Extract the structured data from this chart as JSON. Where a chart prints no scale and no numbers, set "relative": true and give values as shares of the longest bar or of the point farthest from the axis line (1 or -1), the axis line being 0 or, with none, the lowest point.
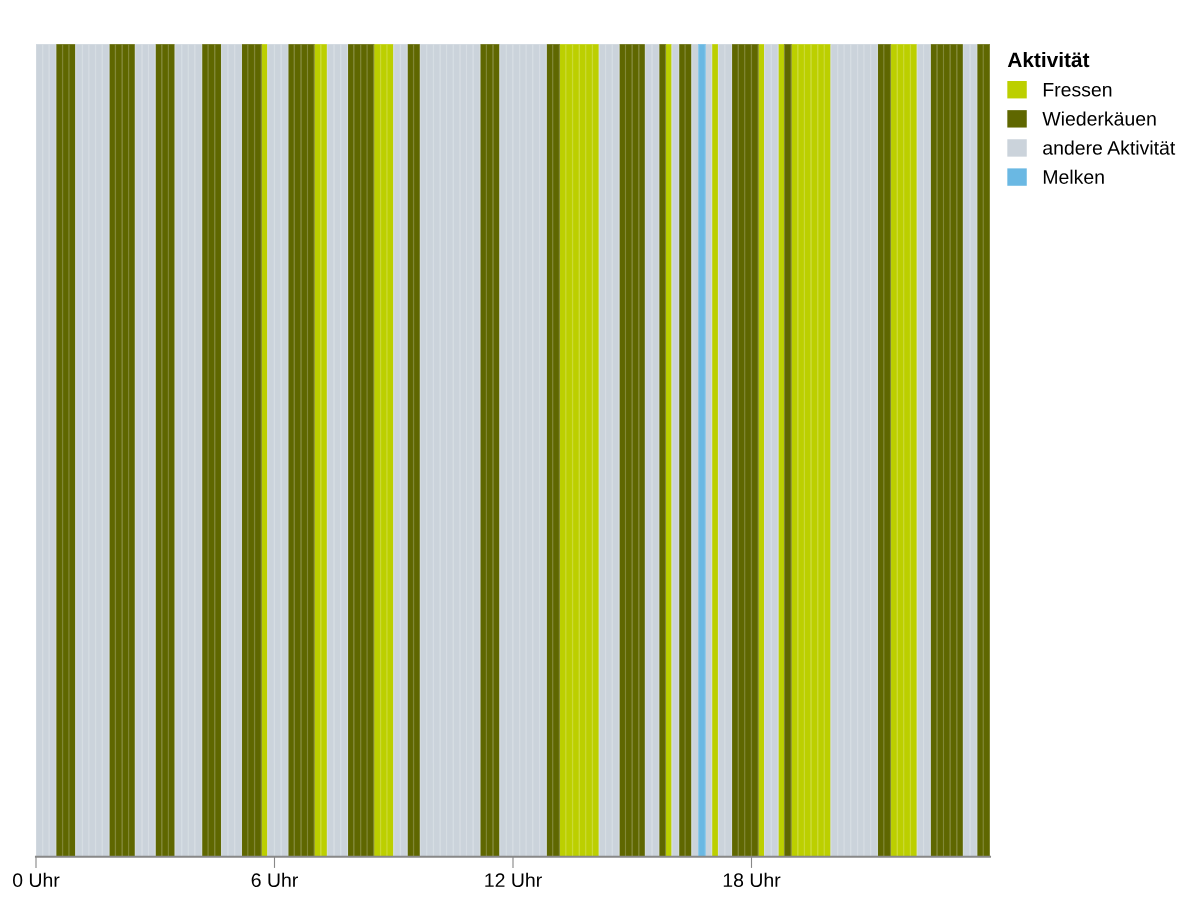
{
  "chart_data": {
    "type": "bar",
    "relative": true,
    "legend_title": "Aktivität",
    "legend": "top right",
    "xlim": [
      0,
      24
    ],
    "xticks": [
      {
        "value": 0,
        "label": "0 Uhr"
      },
      {
        "value": 6,
        "label": "6 Uhr"
      },
      {
        "value": 12,
        "label": "12 Uhr"
      },
      {
        "value": 18,
        "label": "18 Uhr"
      }
    ],
    "series": [
      {
        "name": "Fressen",
        "color": "#bccf00",
        "x": [
          5.67,
          7,
          7.17,
          8.5,
          8.67,
          8.83,
          13.17,
          13.33,
          13.5,
          13.67,
          13.83,
          14,
          15.83,
          17,
          18.17,
          18.67,
          19,
          19.17,
          19.33,
          19.5,
          19.67,
          19.83,
          21.5,
          21.67,
          21.83,
          22
        ],
        "values": [
          1,
          1,
          1,
          1,
          1,
          1,
          1,
          1,
          1,
          1,
          1,
          1,
          1,
          1,
          1,
          1,
          1,
          1,
          1,
          1,
          1,
          1,
          1,
          1,
          1,
          1
        ]
      },
      {
        "name": "Wiederkäuen",
        "color": "#5f6700",
        "x": [
          0.5,
          0.67,
          0.83,
          1.83,
          2,
          2.17,
          2.33,
          3,
          3.17,
          3.33,
          4.17,
          4.33,
          4.5,
          5.17,
          5.33,
          5.5,
          6.33,
          6.5,
          6.67,
          6.83,
          7.83,
          8,
          8.17,
          8.33,
          9.33,
          9.5,
          11.17,
          11.33,
          11.5,
          12.83,
          13,
          14.67,
          14.83,
          15,
          15.17,
          15.67,
          16.17,
          16.33,
          17.5,
          17.67,
          17.83,
          18,
          18.83,
          21.17,
          21.33,
          22.5,
          22.67,
          22.83,
          23,
          23.17,
          23.67,
          23.83
        ],
        "values": [
          1,
          1,
          1,
          1,
          1,
          1,
          1,
          1,
          1,
          1,
          1,
          1,
          1,
          1,
          1,
          1,
          1,
          1,
          1,
          1,
          1,
          1,
          1,
          1,
          1,
          1,
          1,
          1,
          1,
          1,
          1,
          1,
          1,
          1,
          1,
          1,
          1,
          1,
          1,
          1,
          1,
          1,
          1,
          1,
          1,
          1,
          1,
          1,
          1,
          1,
          1,
          1
        ]
      },
      {
        "name": "andere Aktivität",
        "color": "#cbd3db",
        "x": [
          0,
          0.17,
          0.33,
          1,
          1.17,
          1.33,
          1.5,
          1.67,
          2.5,
          2.67,
          2.83,
          3.5,
          3.67,
          3.83,
          4,
          4.67,
          4.83,
          5,
          5.83,
          6,
          6.17,
          7.33,
          7.5,
          7.67,
          9,
          9.17,
          9.67,
          9.83,
          10,
          10.17,
          10.33,
          10.5,
          10.67,
          10.83,
          11,
          11.67,
          11.83,
          12,
          12.17,
          12.33,
          12.5,
          12.67,
          14.17,
          14.33,
          14.5,
          15.33,
          15.5,
          16,
          16.5,
          16.83,
          17.17,
          17.33,
          18.33,
          18.5,
          20,
          20.17,
          20.33,
          20.5,
          20.67,
          20.83,
          21,
          22.17,
          22.33,
          23.33,
          23.5
        ],
        "values": [
          1,
          1,
          1,
          1,
          1,
          1,
          1,
          1,
          1,
          1,
          1,
          1,
          1,
          1,
          1,
          1,
          1,
          1,
          1,
          1,
          1,
          1,
          1,
          1,
          1,
          1,
          1,
          1,
          1,
          1,
          1,
          1,
          1,
          1,
          1,
          1,
          1,
          1,
          1,
          1,
          1,
          1,
          1,
          1,
          1,
          1,
          1,
          1,
          1,
          1,
          1,
          1,
          1,
          1,
          1,
          1,
          1,
          1,
          1,
          1,
          1,
          1,
          1,
          1,
          1
        ]
      },
      {
        "name": "Melken",
        "color": "#6ab8e3",
        "x": [
          16.67
        ],
        "values": [
          1
        ]
      }
    ]
  }
}
